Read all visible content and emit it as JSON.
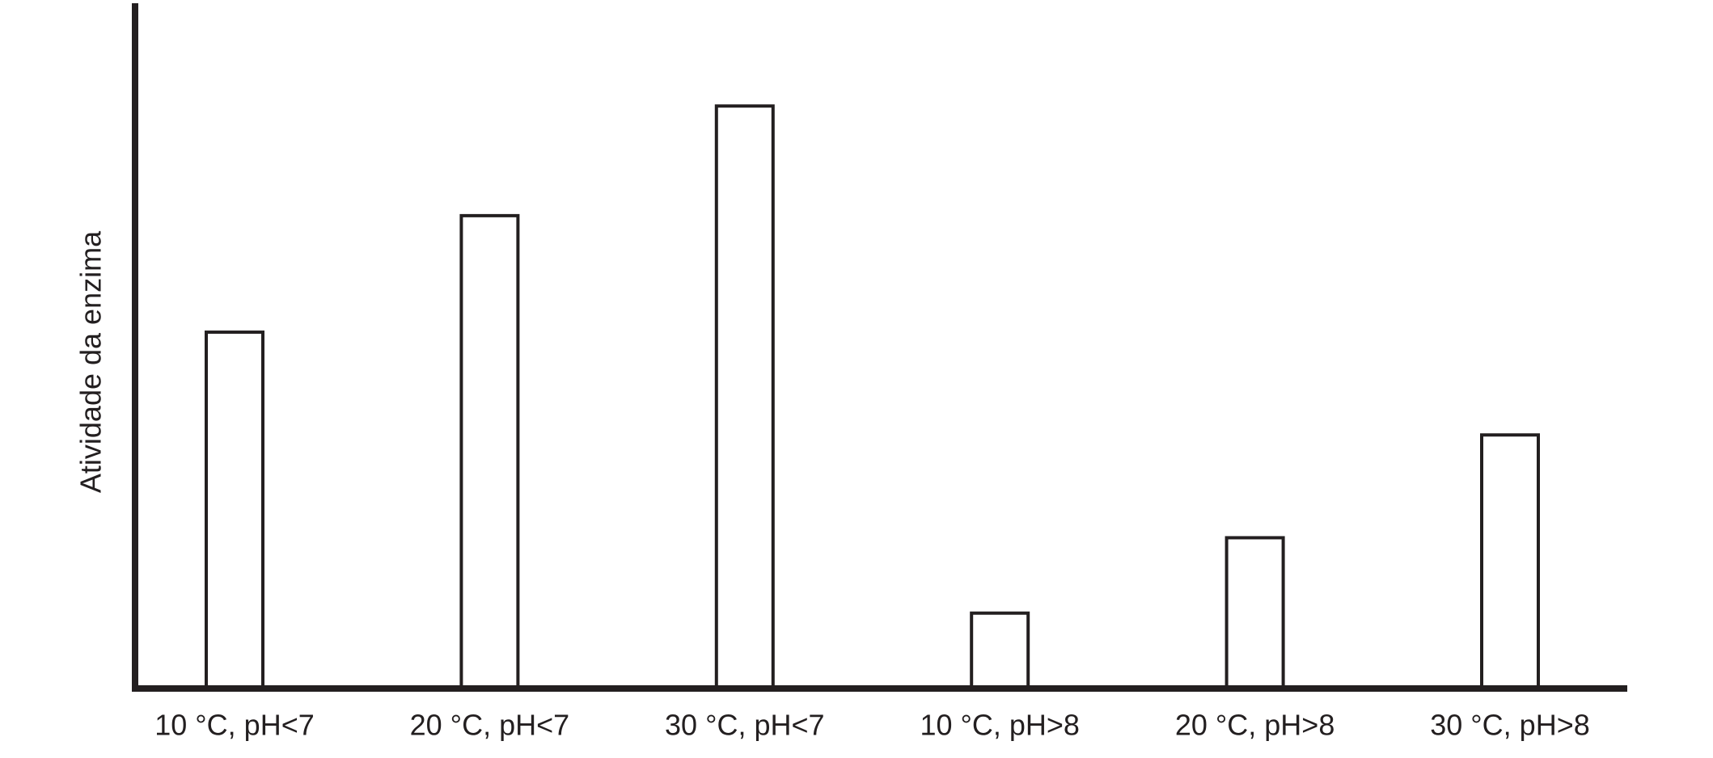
{
  "chart_data": {
    "type": "bar",
    "y_label": "Atividade da enzima",
    "categories": [
      "10 °C, pH<7",
      "20 °C, pH<7",
      "30 °C, pH<7",
      "10 °C, pH>8",
      "20 °C, pH>8",
      "30 °C, pH>8"
    ],
    "values": [
      52,
      69,
      85,
      11,
      22,
      37
    ],
    "color": "#ffffff",
    "edge_color": "#231f20",
    "ylim": [
      0,
      100
    ]
  }
}
